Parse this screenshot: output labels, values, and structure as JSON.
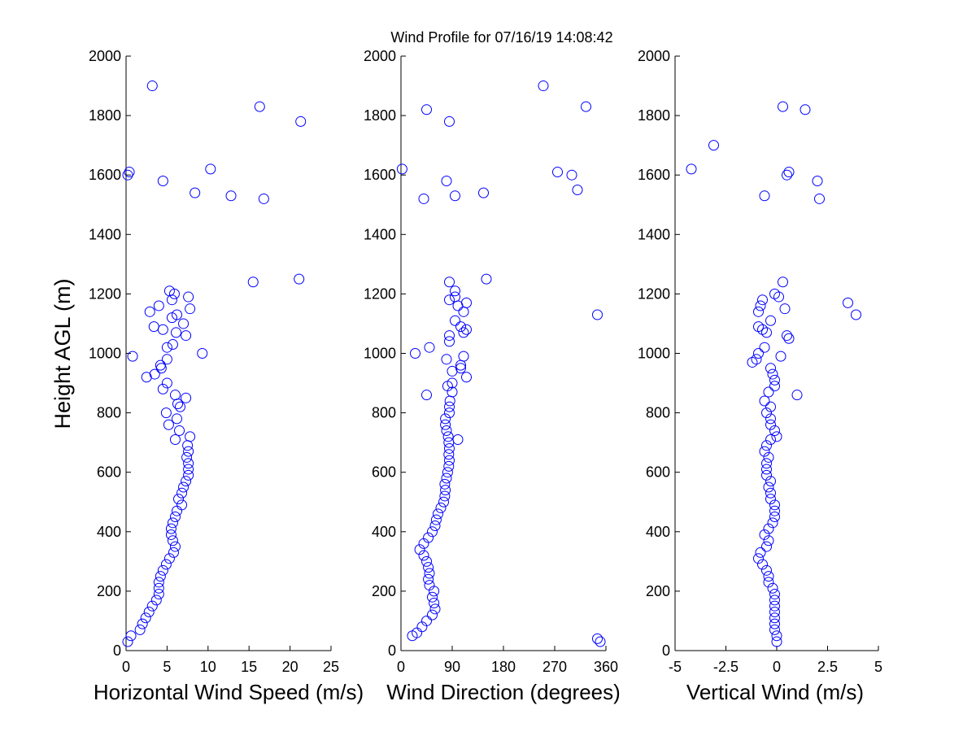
{
  "chart_data": [
    {
      "type": "scatter",
      "title": "Wind Profile for  07/16/19 14:08:42",
      "xlabel": "Horizontal Wind Speed (m/s)",
      "ylabel": "Height AGL (m)",
      "xlim": [
        0,
        25
      ],
      "ylim": [
        0,
        2000
      ],
      "xticks": [
        0,
        5,
        10,
        15,
        20,
        25
      ],
      "xtick_labels": [
        "0",
        "5",
        "10",
        "15",
        "20",
        "25"
      ],
      "yticks": [
        0,
        200,
        400,
        600,
        800,
        1000,
        1200,
        1400,
        1600,
        1800,
        2000
      ],
      "ytick_labels": [
        "0",
        "200",
        "400",
        "600",
        "800",
        "1000",
        "1200",
        "1400",
        "1600",
        "1800",
        "2000"
      ],
      "marker_color": "#0000ff",
      "points": [
        [
          0.2,
          30
        ],
        [
          0.6,
          50
        ],
        [
          1.7,
          70
        ],
        [
          2.0,
          90
        ],
        [
          2.4,
          110
        ],
        [
          2.8,
          130
        ],
        [
          3.2,
          150
        ],
        [
          3.7,
          170
        ],
        [
          4.0,
          190
        ],
        [
          4.0,
          210
        ],
        [
          4.0,
          230
        ],
        [
          4.2,
          250
        ],
        [
          4.5,
          270
        ],
        [
          4.9,
          290
        ],
        [
          5.3,
          310
        ],
        [
          5.8,
          330
        ],
        [
          6.0,
          350
        ],
        [
          5.7,
          370
        ],
        [
          5.5,
          390
        ],
        [
          5.5,
          410
        ],
        [
          5.7,
          430
        ],
        [
          6.0,
          450
        ],
        [
          6.2,
          470
        ],
        [
          6.8,
          490
        ],
        [
          6.4,
          510
        ],
        [
          6.8,
          530
        ],
        [
          7.0,
          550
        ],
        [
          7.3,
          570
        ],
        [
          7.6,
          590
        ],
        [
          7.6,
          610
        ],
        [
          7.6,
          630
        ],
        [
          7.4,
          650
        ],
        [
          7.6,
          670
        ],
        [
          7.5,
          690
        ],
        [
          6.0,
          710
        ],
        [
          7.8,
          720
        ],
        [
          6.5,
          740
        ],
        [
          5.2,
          760
        ],
        [
          6.2,
          780
        ],
        [
          4.9,
          800
        ],
        [
          6.6,
          820
        ],
        [
          6.3,
          830
        ],
        [
          7.3,
          850
        ],
        [
          6.0,
          860
        ],
        [
          4.5,
          880
        ],
        [
          5.0,
          900
        ],
        [
          2.5,
          920
        ],
        [
          3.5,
          930
        ],
        [
          4.3,
          950
        ],
        [
          4.2,
          960
        ],
        [
          5.0,
          980
        ],
        [
          0.8,
          990
        ],
        [
          9.3,
          1000
        ],
        [
          5.0,
          1020
        ],
        [
          5.7,
          1030
        ],
        [
          7.3,
          1060
        ],
        [
          6.1,
          1070
        ],
        [
          4.5,
          1080
        ],
        [
          3.4,
          1090
        ],
        [
          7.0,
          1100
        ],
        [
          5.6,
          1120
        ],
        [
          6.2,
          1130
        ],
        [
          2.9,
          1140
        ],
        [
          7.8,
          1150
        ],
        [
          4.0,
          1160
        ],
        [
          5.6,
          1180
        ],
        [
          7.6,
          1190
        ],
        [
          5.9,
          1200
        ],
        [
          5.3,
          1210
        ],
        [
          15.5,
          1240
        ],
        [
          21.1,
          1250
        ],
        [
          16.8,
          1520
        ],
        [
          12.8,
          1530
        ],
        [
          8.4,
          1540
        ],
        [
          4.5,
          1580
        ],
        [
          0.2,
          1600
        ],
        [
          0.4,
          1610
        ],
        [
          10.3,
          1620
        ],
        [
          21.3,
          1780
        ],
        [
          16.3,
          1830
        ],
        [
          3.2,
          1900
        ]
      ]
    },
    {
      "type": "scatter",
      "xlabel": "Wind Direction (degrees)",
      "xlim": [
        0,
        360
      ],
      "xticks": [
        0,
        90,
        180,
        270,
        360
      ],
      "xtick_labels": [
        "0",
        "90",
        "180",
        "270",
        "360"
      ],
      "yticks": [
        0,
        200,
        400,
        600,
        800,
        1000,
        1200,
        1400,
        1600,
        1800,
        2000
      ],
      "ytick_labels": [
        "0",
        "200",
        "400",
        "600",
        "800",
        "1000",
        "1200",
        "1400",
        "1600",
        "1800",
        "2000"
      ],
      "marker_color": "#0000ff",
      "points": [
        [
          350,
          30
        ],
        [
          345,
          40
        ],
        [
          20,
          50
        ],
        [
          28,
          60
        ],
        [
          37,
          80
        ],
        [
          45,
          100
        ],
        [
          55,
          120
        ],
        [
          60,
          140
        ],
        [
          58,
          160
        ],
        [
          55,
          180
        ],
        [
          58,
          200
        ],
        [
          50,
          220
        ],
        [
          48,
          240
        ],
        [
          50,
          260
        ],
        [
          48,
          280
        ],
        [
          45,
          300
        ],
        [
          40,
          320
        ],
        [
          33,
          340
        ],
        [
          40,
          360
        ],
        [
          48,
          380
        ],
        [
          55,
          400
        ],
        [
          60,
          420
        ],
        [
          62,
          440
        ],
        [
          65,
          460
        ],
        [
          70,
          480
        ],
        [
          75,
          500
        ],
        [
          77,
          520
        ],
        [
          78,
          540
        ],
        [
          77,
          560
        ],
        [
          80,
          580
        ],
        [
          82,
          600
        ],
        [
          84,
          620
        ],
        [
          85,
          640
        ],
        [
          84,
          660
        ],
        [
          85,
          680
        ],
        [
          84,
          700
        ],
        [
          100,
          710
        ],
        [
          83,
          720
        ],
        [
          80,
          740
        ],
        [
          78,
          760
        ],
        [
          78,
          780
        ],
        [
          85,
          800
        ],
        [
          85,
          820
        ],
        [
          86,
          840
        ],
        [
          45,
          860
        ],
        [
          90,
          870
        ],
        [
          82,
          890
        ],
        [
          90,
          900
        ],
        [
          115,
          920
        ],
        [
          90,
          940
        ],
        [
          105,
          950
        ],
        [
          105,
          960
        ],
        [
          80,
          980
        ],
        [
          110,
          990
        ],
        [
          25,
          1000
        ],
        [
          50,
          1020
        ],
        [
          85,
          1040
        ],
        [
          85,
          1060
        ],
        [
          110,
          1070
        ],
        [
          115,
          1080
        ],
        [
          105,
          1090
        ],
        [
          95,
          1110
        ],
        [
          345,
          1130
        ],
        [
          110,
          1140
        ],
        [
          100,
          1160
        ],
        [
          115,
          1170
        ],
        [
          85,
          1180
        ],
        [
          95,
          1190
        ],
        [
          95,
          1210
        ],
        [
          85,
          1240
        ],
        [
          150,
          1250
        ],
        [
          40,
          1520
        ],
        [
          95,
          1530
        ],
        [
          145,
          1540
        ],
        [
          310,
          1550
        ],
        [
          80,
          1580
        ],
        [
          300,
          1600
        ],
        [
          275,
          1610
        ],
        [
          2,
          1620
        ],
        [
          85,
          1780
        ],
        [
          45,
          1820
        ],
        [
          325,
          1830
        ],
        [
          250,
          1900
        ]
      ]
    },
    {
      "type": "scatter",
      "xlabel": "Vertical Wind (m/s)",
      "xlim": [
        -5,
        5
      ],
      "xticks": [
        -5,
        -2.5,
        0,
        2.5,
        5
      ],
      "xtick_labels": [
        "-5",
        "-2.5",
        "0",
        "2.5",
        "5"
      ],
      "yticks": [
        0,
        200,
        400,
        600,
        800,
        1000,
        1200,
        1400,
        1600,
        1800,
        2000
      ],
      "ytick_labels": [
        "0",
        "200",
        "400",
        "600",
        "800",
        "1000",
        "1200",
        "1400",
        "1600",
        "1800",
        "2000"
      ],
      "marker_color": "#0000ff",
      "points": [
        [
          0,
          30
        ],
        [
          0,
          50
        ],
        [
          -0.1,
          70
        ],
        [
          -0.1,
          90
        ],
        [
          -0.1,
          110
        ],
        [
          -0.1,
          130
        ],
        [
          -0.1,
          150
        ],
        [
          -0.1,
          170
        ],
        [
          -0.1,
          190
        ],
        [
          -0.2,
          210
        ],
        [
          -0.4,
          230
        ],
        [
          -0.4,
          250
        ],
        [
          -0.5,
          270
        ],
        [
          -0.7,
          290
        ],
        [
          -0.9,
          310
        ],
        [
          -0.8,
          330
        ],
        [
          -0.5,
          350
        ],
        [
          -0.4,
          370
        ],
        [
          -0.6,
          390
        ],
        [
          -0.4,
          410
        ],
        [
          -0.2,
          430
        ],
        [
          -0.1,
          450
        ],
        [
          -0.1,
          470
        ],
        [
          -0.1,
          490
        ],
        [
          -0.3,
          510
        ],
        [
          -0.3,
          530
        ],
        [
          -0.4,
          550
        ],
        [
          -0.3,
          570
        ],
        [
          -0.5,
          590
        ],
        [
          -0.5,
          610
        ],
        [
          -0.5,
          630
        ],
        [
          -0.4,
          650
        ],
        [
          -0.6,
          670
        ],
        [
          -0.5,
          690
        ],
        [
          -0.3,
          710
        ],
        [
          0,
          720
        ],
        [
          -0.1,
          740
        ],
        [
          -0.3,
          760
        ],
        [
          -0.3,
          780
        ],
        [
          -0.5,
          800
        ],
        [
          -0.3,
          820
        ],
        [
          -0.6,
          840
        ],
        [
          1.0,
          860
        ],
        [
          -0.4,
          870
        ],
        [
          -0.1,
          890
        ],
        [
          -0.1,
          910
        ],
        [
          -0.2,
          930
        ],
        [
          -0.3,
          950
        ],
        [
          -1.2,
          970
        ],
        [
          -1.0,
          980
        ],
        [
          0.2,
          990
        ],
        [
          -0.9,
          1000
        ],
        [
          -0.6,
          1020
        ],
        [
          0.6,
          1050
        ],
        [
          0.5,
          1060
        ],
        [
          -0.5,
          1070
        ],
        [
          -0.7,
          1080
        ],
        [
          -0.9,
          1090
        ],
        [
          -0.3,
          1110
        ],
        [
          3.9,
          1130
        ],
        [
          -0.9,
          1140
        ],
        [
          0.4,
          1150
        ],
        [
          -0.8,
          1160
        ],
        [
          3.5,
          1170
        ],
        [
          -0.7,
          1180
        ],
        [
          0.1,
          1190
        ],
        [
          -0.1,
          1200
        ],
        [
          0.3,
          1240
        ],
        [
          2.1,
          1520
        ],
        [
          -0.6,
          1530
        ],
        [
          2.0,
          1580
        ],
        [
          0.5,
          1600
        ],
        [
          0.6,
          1610
        ],
        [
          -4.2,
          1620
        ],
        [
          -3.1,
          1700
        ],
        [
          1.4,
          1820
        ],
        [
          0.3,
          1830
        ]
      ]
    }
  ]
}
